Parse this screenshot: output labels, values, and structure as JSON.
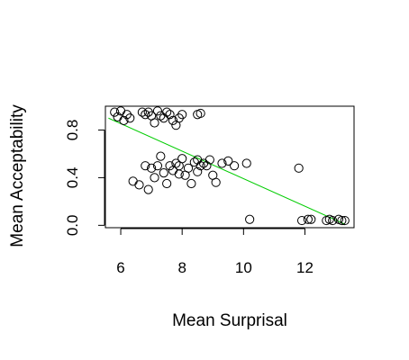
{
  "chart_data": {
    "type": "scatter",
    "title": "",
    "xlabel": "Mean Surprisal",
    "ylabel": "Mean Acceptability",
    "xlim": [
      5.5,
      13.6
    ],
    "ylim": [
      -0.02,
      1.0
    ],
    "x_ticks": [
      6,
      8,
      10,
      12
    ],
    "x_tick_labels": [
      "6",
      "8",
      "10",
      "12"
    ],
    "y_ticks": [
      0.0,
      0.4,
      0.8
    ],
    "y_tick_labels": [
      "0.0",
      "0.4",
      "0.8"
    ],
    "grid": false,
    "legend": "none",
    "point_color": "#000000",
    "fit_line_color": "#00cc00",
    "fit_line": {
      "x": [
        5.6,
        13.3
      ],
      "y": [
        0.9,
        0.01
      ]
    },
    "points": [
      [
        5.8,
        0.95
      ],
      [
        5.9,
        0.91
      ],
      [
        6.0,
        0.96
      ],
      [
        6.2,
        0.93
      ],
      [
        6.3,
        0.9
      ],
      [
        6.1,
        0.88
      ],
      [
        6.7,
        0.95
      ],
      [
        6.8,
        0.93
      ],
      [
        6.9,
        0.95
      ],
      [
        7.2,
        0.96
      ],
      [
        7.3,
        0.92
      ],
      [
        7.1,
        0.86
      ],
      [
        7.4,
        0.9
      ],
      [
        7.6,
        0.93
      ],
      [
        7.7,
        0.88
      ],
      [
        7.8,
        0.84
      ],
      [
        7.9,
        0.9
      ],
      [
        8.0,
        0.93
      ],
      [
        8.5,
        0.93
      ],
      [
        8.6,
        0.94
      ],
      [
        7.5,
        0.95
      ],
      [
        7.0,
        0.92
      ],
      [
        6.4,
        0.37
      ],
      [
        6.6,
        0.34
      ],
      [
        6.8,
        0.5
      ],
      [
        6.9,
        0.3
      ],
      [
        7.0,
        0.48
      ],
      [
        7.1,
        0.4
      ],
      [
        7.2,
        0.5
      ],
      [
        7.3,
        0.58
      ],
      [
        7.4,
        0.44
      ],
      [
        7.5,
        0.35
      ],
      [
        7.6,
        0.5
      ],
      [
        7.7,
        0.46
      ],
      [
        7.8,
        0.52
      ],
      [
        7.9,
        0.43
      ],
      [
        8.0,
        0.56
      ],
      [
        8.1,
        0.42
      ],
      [
        8.2,
        0.48
      ],
      [
        8.3,
        0.35
      ],
      [
        8.4,
        0.53
      ],
      [
        8.5,
        0.45
      ],
      [
        8.6,
        0.5
      ],
      [
        8.7,
        0.52
      ],
      [
        8.8,
        0.5
      ],
      [
        8.9,
        0.55
      ],
      [
        9.0,
        0.42
      ],
      [
        9.1,
        0.36
      ],
      [
        9.3,
        0.52
      ],
      [
        9.5,
        0.54
      ],
      [
        9.7,
        0.5
      ],
      [
        10.1,
        0.52
      ],
      [
        8.5,
        0.55
      ],
      [
        7.9,
        0.5
      ],
      [
        10.2,
        0.05
      ],
      [
        11.8,
        0.48
      ],
      [
        11.9,
        0.04
      ],
      [
        12.1,
        0.05
      ],
      [
        12.2,
        0.05
      ],
      [
        12.7,
        0.04
      ],
      [
        12.8,
        0.05
      ],
      [
        12.9,
        0.04
      ],
      [
        13.1,
        0.05
      ],
      [
        13.2,
        0.04
      ],
      [
        13.3,
        0.04
      ]
    ]
  }
}
